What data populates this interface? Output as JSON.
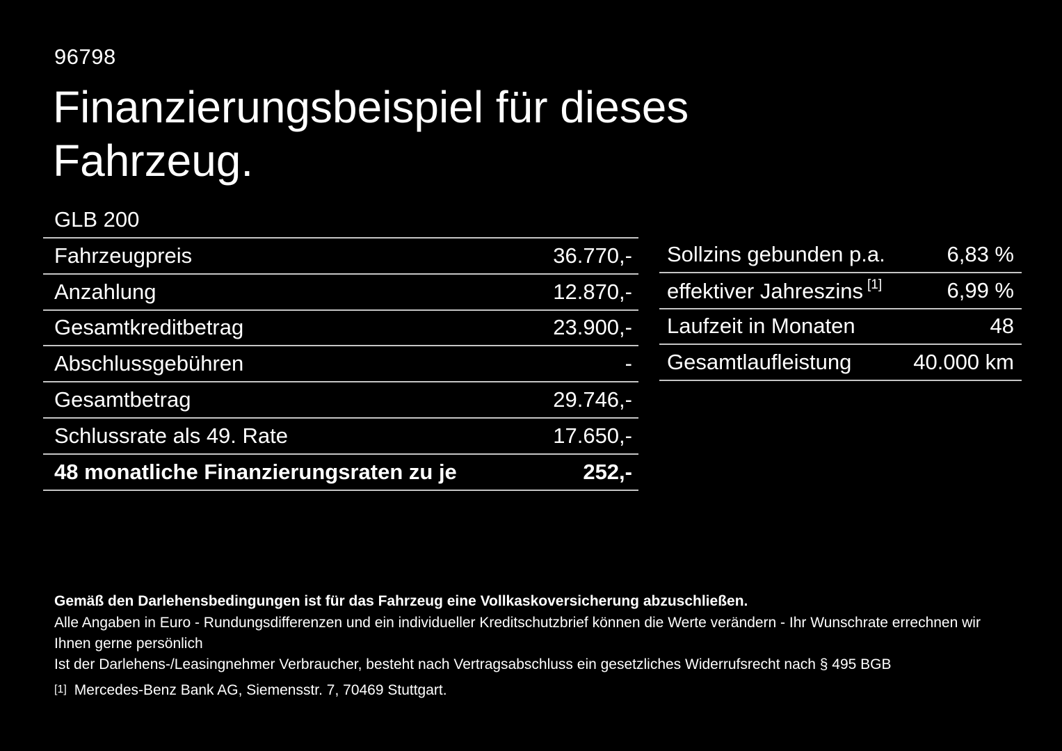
{
  "page": {
    "background_color": "#000000",
    "text_color": "#ffffff",
    "divider_color": "#c6c6c6"
  },
  "header": {
    "doc_id": "96798",
    "title": "Finanzierungsbeispiel für dieses Fahrzeug."
  },
  "vehicle": {
    "model": "GLB 200"
  },
  "finance_table": {
    "rows": [
      {
        "label": "Fahrzeugpreis",
        "value": "36.770,-"
      },
      {
        "label": "Anzahlung",
        "value": "12.870,-"
      },
      {
        "label": "Gesamtkreditbetrag",
        "value": "23.900,-"
      },
      {
        "label": "Abschlussgebühren",
        "value": "-"
      },
      {
        "label": "Gesamtbetrag",
        "value": "29.746,-"
      },
      {
        "label": "Schlussrate als 49. Rate",
        "value": "17.650,-"
      },
      {
        "label": "48 monatliche Finanzierungsraten zu je",
        "value": "252,-"
      }
    ]
  },
  "conditions_table": {
    "rows": [
      {
        "label": "Sollzins gebunden p.a.",
        "value": "6,83 %"
      },
      {
        "label": "effektiver Jahreszins",
        "label_sup": "[1]",
        "value": "6,99 %"
      },
      {
        "label": "Laufzeit in Monaten",
        "value": "48"
      },
      {
        "label": "Gesamtlaufleistung",
        "value": "40.000 km"
      }
    ]
  },
  "footer": {
    "insurance_note": "Gemäß den Darlehensbedingungen ist für das Fahrzeug eine Vollkaskoversicherung abzuschließen.",
    "disclaimer_line1": "Alle Angaben in Euro - Rundungsdifferenzen und ein individueller Kreditschutzbrief können die Werte verändern - Ihr Wunschrate errechnen wir Ihnen gerne persönlich",
    "disclaimer_line2": "Ist der Darlehens-/Leasingnehmer Verbraucher, besteht nach Vertragsabschluss ein gesetzliches Widerrufsrecht nach § 495 BGB",
    "footnote_marker": "[1]",
    "footnote_text": "Mercedes-Benz Bank AG, Siemensstr. 7, 70469 Stuttgart."
  }
}
